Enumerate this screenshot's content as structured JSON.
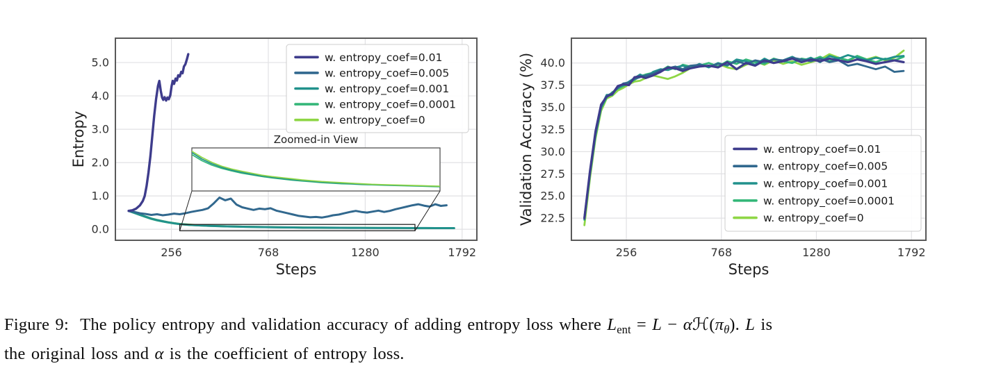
{
  "figure": {
    "caption_line1": [
      {
        "t": "Figure 9:  The policy entropy and validation accuracy of adding entropy loss where ",
        "s": "r"
      },
      {
        "t": "L",
        "s": "i"
      },
      {
        "t": "ent",
        "s": "sub"
      },
      {
        "t": " = ",
        "s": "r"
      },
      {
        "t": "L",
        "s": "i"
      },
      {
        "t": " − ",
        "s": "r"
      },
      {
        "t": "α",
        "s": "i"
      },
      {
        "t": "ℋ(",
        "s": "r"
      },
      {
        "t": "π",
        "s": "i"
      },
      {
        "t": "θ",
        "s": "isub"
      },
      {
        "t": ").",
        "s": "r"
      },
      {
        "t": " L",
        "s": "i"
      },
      {
        "t": " is",
        "s": "r"
      }
    ],
    "caption_line2": [
      {
        "t": "the original loss and ",
        "s": "r"
      },
      {
        "t": "α",
        "s": "i"
      },
      {
        "t": " is the coefficient of entropy loss.",
        "s": "r"
      }
    ]
  },
  "chart_data": [
    {
      "type": "line",
      "title": "",
      "xlabel": "Steps",
      "ylabel": "Entropy",
      "xlim": [
        -40,
        1870
      ],
      "ylim": [
        -0.33,
        5.73
      ],
      "xticks": [
        256,
        768,
        1280,
        1792
      ],
      "xtick_labels": [
        "256",
        "768",
        "1280",
        "1792"
      ],
      "yticks": [
        0.0,
        1.0,
        2.0,
        3.0,
        4.0,
        5.0
      ],
      "ytick_labels": [
        "0.0",
        "1.0",
        "2.0",
        "3.0",
        "4.0",
        "5.0"
      ],
      "grid": true,
      "legend_position": "upper right",
      "series": [
        {
          "name": "w. entropy_coef=0.01",
          "color": "#3e3c8c",
          "x": [
            30,
            50,
            70,
            90,
            105,
            115,
            125,
            135,
            145,
            155,
            165,
            175,
            185,
            192,
            200,
            207,
            213,
            220,
            228,
            235,
            242,
            250,
            257,
            263,
            270,
            278,
            285,
            292,
            300,
            308,
            315,
            322,
            330,
            338,
            345
          ],
          "y": [
            0.55,
            0.57,
            0.62,
            0.72,
            0.85,
            1.0,
            1.3,
            1.7,
            2.2,
            2.8,
            3.4,
            3.9,
            4.3,
            4.45,
            4.15,
            3.95,
            3.88,
            3.96,
            3.86,
            3.95,
            3.9,
            4.02,
            4.3,
            4.45,
            4.36,
            4.52,
            4.46,
            4.62,
            4.58,
            4.72,
            4.68,
            4.88,
            4.95,
            5.1,
            5.25
          ]
        },
        {
          "name": "w. entropy_coef=0.005",
          "color": "#31688e",
          "x": [
            30,
            60,
            90,
            120,
            150,
            180,
            210,
            240,
            270,
            300,
            330,
            360,
            390,
            420,
            450,
            480,
            510,
            540,
            570,
            600,
            630,
            660,
            690,
            720,
            750,
            780,
            810,
            840,
            870,
            900,
            930,
            960,
            990,
            1020,
            1050,
            1080,
            1110,
            1140,
            1170,
            1200,
            1230,
            1260,
            1290,
            1320,
            1350,
            1380,
            1410,
            1440,
            1470,
            1500,
            1530,
            1560,
            1590,
            1620,
            1650,
            1680,
            1710
          ],
          "y": [
            0.55,
            0.52,
            0.48,
            0.46,
            0.43,
            0.45,
            0.42,
            0.44,
            0.47,
            0.45,
            0.48,
            0.52,
            0.55,
            0.58,
            0.63,
            0.78,
            0.95,
            0.87,
            0.92,
            0.74,
            0.66,
            0.62,
            0.58,
            0.62,
            0.6,
            0.63,
            0.56,
            0.52,
            0.48,
            0.44,
            0.4,
            0.38,
            0.36,
            0.37,
            0.35,
            0.38,
            0.42,
            0.44,
            0.48,
            0.52,
            0.55,
            0.52,
            0.5,
            0.53,
            0.56,
            0.52,
            0.55,
            0.6,
            0.64,
            0.68,
            0.72,
            0.75,
            0.71,
            0.68,
            0.75,
            0.7,
            0.72
          ]
        },
        {
          "name": "w. entropy_coef=0.001",
          "color": "#21918c",
          "x": [
            30,
            60,
            90,
            120,
            150,
            180,
            210,
            240,
            270,
            300,
            350,
            400,
            450,
            500,
            550,
            600,
            650,
            700,
            750,
            800,
            850,
            900,
            950,
            1000,
            1050,
            1100,
            1150,
            1200,
            1250,
            1300,
            1350,
            1400,
            1450,
            1500,
            1550,
            1600,
            1650,
            1700,
            1750
          ],
          "y": [
            0.55,
            0.495,
            0.435,
            0.375,
            0.32,
            0.275,
            0.24,
            0.208,
            0.18,
            0.158,
            0.135,
            0.118,
            0.105,
            0.095,
            0.087,
            0.08,
            0.074,
            0.069,
            0.065,
            0.061,
            0.058,
            0.055,
            0.052,
            0.05,
            0.048,
            0.046,
            0.044,
            0.043,
            0.042,
            0.041,
            0.04,
            0.039,
            0.038,
            0.037,
            0.036,
            0.036,
            0.035,
            0.035,
            0.034
          ]
        },
        {
          "name": "w. entropy_coef=0.0001",
          "color": "#35b779",
          "x": [
            30,
            60,
            90,
            120,
            150,
            180,
            210,
            240,
            270,
            300,
            350,
            400,
            450,
            500,
            550,
            600,
            650,
            700,
            750,
            800,
            850,
            900,
            950,
            1000,
            1050,
            1100,
            1150,
            1200,
            1250,
            1300,
            1350,
            1400,
            1450,
            1500,
            1550,
            1600,
            1650,
            1700,
            1750
          ],
          "y": [
            0.545,
            0.488,
            0.425,
            0.365,
            0.31,
            0.266,
            0.231,
            0.199,
            0.173,
            0.151,
            0.129,
            0.113,
            0.101,
            0.092,
            0.084,
            0.078,
            0.072,
            0.067,
            0.063,
            0.059,
            0.056,
            0.053,
            0.05,
            0.048,
            0.046,
            0.045,
            0.043,
            0.042,
            0.041,
            0.04,
            0.039,
            0.038,
            0.037,
            0.036,
            0.035,
            0.034,
            0.033,
            0.033,
            0.032
          ]
        },
        {
          "name": "w. entropy_coef=0",
          "color": "#8ed645",
          "x": [
            30,
            60,
            90,
            120,
            150,
            180,
            210,
            240,
            270,
            300,
            350,
            400,
            450,
            500,
            550,
            600,
            650,
            700,
            750,
            800,
            850,
            900,
            950,
            1000,
            1050,
            1100,
            1150,
            1200,
            1250,
            1300,
            1350,
            1400,
            1450,
            1500,
            1550,
            1600,
            1650,
            1700,
            1750
          ],
          "y": [
            0.55,
            0.5,
            0.44,
            0.382,
            0.327,
            0.282,
            0.246,
            0.214,
            0.186,
            0.163,
            0.141,
            0.123,
            0.109,
            0.099,
            0.091,
            0.084,
            0.077,
            0.072,
            0.068,
            0.064,
            0.06,
            0.057,
            0.054,
            0.052,
            0.05,
            0.048,
            0.046,
            0.044,
            0.043,
            0.042,
            0.041,
            0.04,
            0.039,
            0.038,
            0.037,
            0.036,
            0.035,
            0.034,
            0.033
          ]
        }
      ],
      "inset": {
        "title": "Zoomed-in View",
        "xlim": [
          300,
          1543
        ],
        "ylim": [
          0.02,
          0.175
        ],
        "indicator_region": {
          "x0": 300,
          "x1": 1543,
          "y0": -0.045,
          "y1": 0.145
        },
        "series_names": [
          "w. entropy_coef=0.0001",
          "w. entropy_coef=0.001",
          "w. entropy_coef=0"
        ]
      }
    },
    {
      "type": "line",
      "title": "",
      "xlabel": "Steps",
      "ylabel": "Validation Accuracy (%)",
      "xlim": [
        -40,
        1870
      ],
      "ylim": [
        20.0,
        42.8
      ],
      "xticks": [
        256,
        768,
        1280,
        1792
      ],
      "xtick_labels": [
        "256",
        "768",
        "1280",
        "1792"
      ],
      "yticks": [
        22.5,
        25.0,
        27.5,
        30.0,
        32.5,
        35.0,
        37.5,
        40.0
      ],
      "ytick_labels": [
        "22.5",
        "25.0",
        "27.5",
        "30.0",
        "32.5",
        "35.0",
        "37.5",
        "40.0"
      ],
      "grid": true,
      "legend_position": "lower right",
      "series": [
        {
          "name": "w. entropy_coef=0.01",
          "color": "#3e3c8c",
          "x": [
            30,
            60,
            90,
            120,
            150,
            180,
            210,
            240,
            270,
            300,
            330,
            360,
            400,
            440,
            480,
            520,
            560,
            600,
            650,
            700,
            750,
            800,
            850,
            900,
            950,
            1000,
            1050,
            1100,
            1150,
            1200,
            1250,
            1300,
            1350,
            1400,
            1450,
            1500,
            1550,
            1600,
            1650,
            1700,
            1750
          ],
          "y": [
            22.5,
            27.8,
            32.3,
            35.3,
            36.2,
            36.5,
            37.4,
            37.6,
            37.5,
            38.4,
            38.5,
            38.3,
            38.6,
            39.0,
            39.5,
            39.4,
            39.1,
            39.4,
            39.6,
            39.7,
            39.5,
            40.1,
            39.3,
            40.0,
            39.7,
            40.3,
            40.0,
            40.2,
            40.5,
            40.1,
            40.4,
            40.2,
            40.5,
            40.3,
            40.1,
            40.4,
            40.2,
            39.9,
            40.1,
            40.3,
            40.1
          ]
        },
        {
          "name": "w. entropy_coef=0.005",
          "color": "#31688e",
          "x": [
            30,
            60,
            90,
            120,
            150,
            180,
            210,
            240,
            270,
            300,
            330,
            360,
            400,
            440,
            480,
            520,
            560,
            600,
            650,
            700,
            750,
            800,
            850,
            900,
            950,
            1000,
            1050,
            1100,
            1150,
            1200,
            1250,
            1300,
            1350,
            1400,
            1450,
            1500,
            1550,
            1600,
            1650,
            1700,
            1750
          ],
          "y": [
            22.4,
            27.5,
            32.0,
            35.0,
            36.3,
            36.6,
            37.2,
            37.7,
            37.8,
            38.2,
            38.4,
            38.6,
            38.8,
            39.2,
            39.4,
            39.6,
            39.3,
            39.7,
            39.8,
            39.6,
            39.9,
            39.8,
            40.2,
            39.9,
            40.3,
            40.1,
            40.4,
            40.3,
            40.6,
            40.4,
            40.2,
            40.5,
            40.1,
            40.3,
            39.7,
            39.9,
            39.6,
            39.3,
            39.6,
            39.0,
            39.1
          ]
        },
        {
          "name": "w. entropy_coef=0.001",
          "color": "#21918c",
          "x": [
            30,
            60,
            90,
            120,
            150,
            180,
            210,
            240,
            270,
            300,
            330,
            360,
            400,
            440,
            480,
            520,
            560,
            600,
            650,
            700,
            750,
            800,
            850,
            900,
            950,
            1000,
            1050,
            1100,
            1150,
            1200,
            1250,
            1300,
            1350,
            1400,
            1450,
            1500,
            1550,
            1600,
            1650,
            1700,
            1750
          ],
          "y": [
            22.6,
            27.6,
            32.1,
            35.1,
            36.4,
            36.4,
            37.3,
            37.5,
            37.9,
            38.3,
            38.7,
            38.4,
            39.0,
            39.3,
            39.2,
            39.5,
            39.7,
            39.4,
            39.9,
            39.5,
            40.0,
            39.7,
            40.4,
            40.2,
            39.8,
            40.5,
            40.0,
            40.3,
            40.7,
            40.2,
            40.6,
            40.1,
            40.8,
            40.5,
            40.9,
            40.6,
            40.3,
            40.6,
            40.4,
            40.7,
            40.8
          ]
        },
        {
          "name": "w. entropy_coef=0.0001",
          "color": "#35b779",
          "x": [
            30,
            60,
            90,
            120,
            150,
            180,
            210,
            240,
            270,
            300,
            330,
            360,
            400,
            440,
            480,
            520,
            560,
            600,
            650,
            700,
            750,
            800,
            850,
            900,
            950,
            1000,
            1050,
            1100,
            1150,
            1200,
            1250,
            1300,
            1350,
            1400,
            1450,
            1500,
            1550,
            1600,
            1650,
            1700,
            1750
          ],
          "y": [
            22.3,
            27.4,
            31.8,
            34.9,
            36.1,
            36.7,
            37.1,
            37.4,
            37.7,
            38.1,
            38.5,
            38.7,
            38.9,
            39.1,
            39.6,
            39.3,
            39.8,
            39.6,
            39.7,
            40.0,
            39.6,
            40.2,
            39.9,
            40.4,
            40.1,
            39.9,
            40.5,
            40.2,
            40.0,
            40.5,
            40.3,
            40.7,
            40.2,
            40.6,
            40.3,
            40.8,
            40.4,
            40.1,
            40.5,
            40.3,
            40.7
          ]
        },
        {
          "name": "w. entropy_coef=0",
          "color": "#8ed645",
          "x": [
            30,
            60,
            90,
            120,
            150,
            180,
            210,
            240,
            270,
            300,
            330,
            360,
            400,
            440,
            480,
            520,
            560,
            600,
            650,
            700,
            750,
            800,
            850,
            900,
            950,
            1000,
            1050,
            1100,
            1150,
            1200,
            1250,
            1300,
            1350,
            1400,
            1450,
            1500,
            1550,
            1600,
            1650,
            1700,
            1750
          ],
          "y": [
            21.7,
            27.0,
            31.5,
            34.6,
            36.0,
            36.3,
            36.9,
            37.2,
            37.6,
            37.9,
            38.0,
            38.3,
            38.6,
            38.4,
            38.2,
            38.5,
            38.9,
            39.4,
            39.8,
            39.6,
            39.9,
            39.5,
            39.3,
            39.8,
            40.2,
            39.8,
            40.3,
            39.9,
            40.2,
            39.8,
            40.1,
            40.4,
            41.0,
            40.6,
            40.2,
            40.8,
            40.4,
            40.7,
            40.3,
            40.6,
            41.4
          ]
        }
      ]
    }
  ],
  "style": {
    "frame_color": "#595959",
    "grid_color": "#e1e1e4",
    "tick_color": "#333333",
    "label_color": "#1f1f1f",
    "legend_border": "#cccccc",
    "legend_bg": "#ffffff"
  }
}
